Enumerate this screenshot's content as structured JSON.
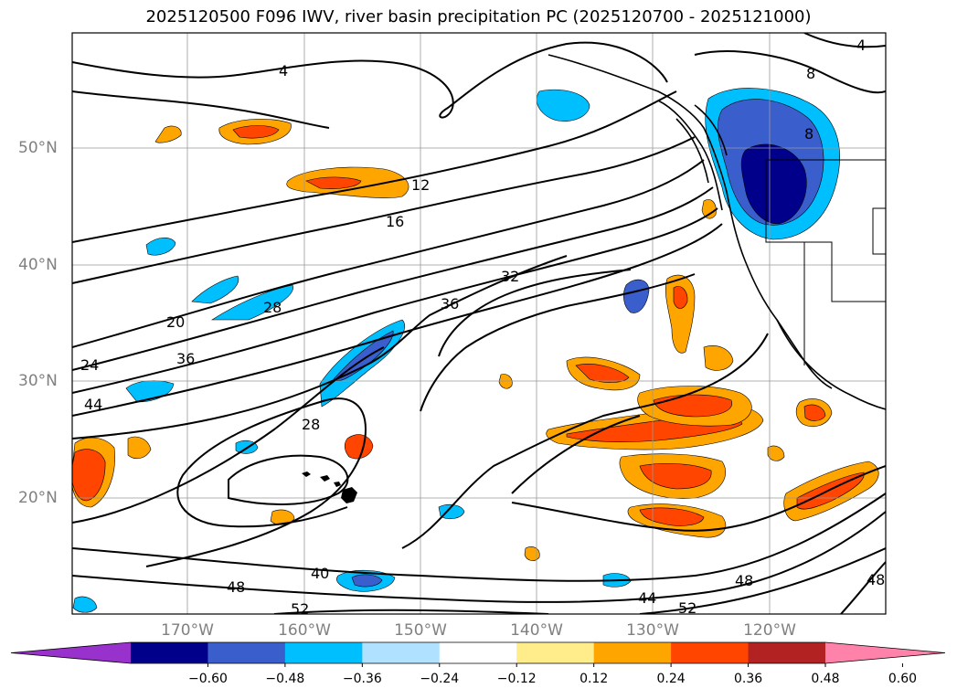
{
  "title": "2025120500 F096 IWV, river basin precipitation PC (2025120700 - 2025121000)",
  "lat_labels": [
    "50°N",
    "40°N",
    "30°N",
    "20°N"
  ],
  "lon_labels": [
    "170°W",
    "160°W",
    "150°W",
    "140°W",
    "130°W",
    "120°W"
  ],
  "colorbar": {
    "ticks": [
      "−0.60",
      "−0.48",
      "−0.36",
      "−0.24",
      "−0.12",
      "0.12",
      "0.24",
      "0.36",
      "0.48",
      "0.60"
    ],
    "colors": [
      "#9932cc",
      "#00008b",
      "#3a5fcd",
      "#00bfff",
      "#b0e2ff",
      "#ffffff",
      "#ffec8b",
      "#ffa500",
      "#ff4500",
      "#b22222",
      "#ff82ab"
    ]
  },
  "contour_labels": [
    "4",
    "8",
    "8",
    "12",
    "16",
    "20",
    "24",
    "28",
    "28",
    "32",
    "36",
    "36",
    "40",
    "44",
    "44",
    "48",
    "48",
    "48",
    "52",
    "52",
    "4"
  ]
}
